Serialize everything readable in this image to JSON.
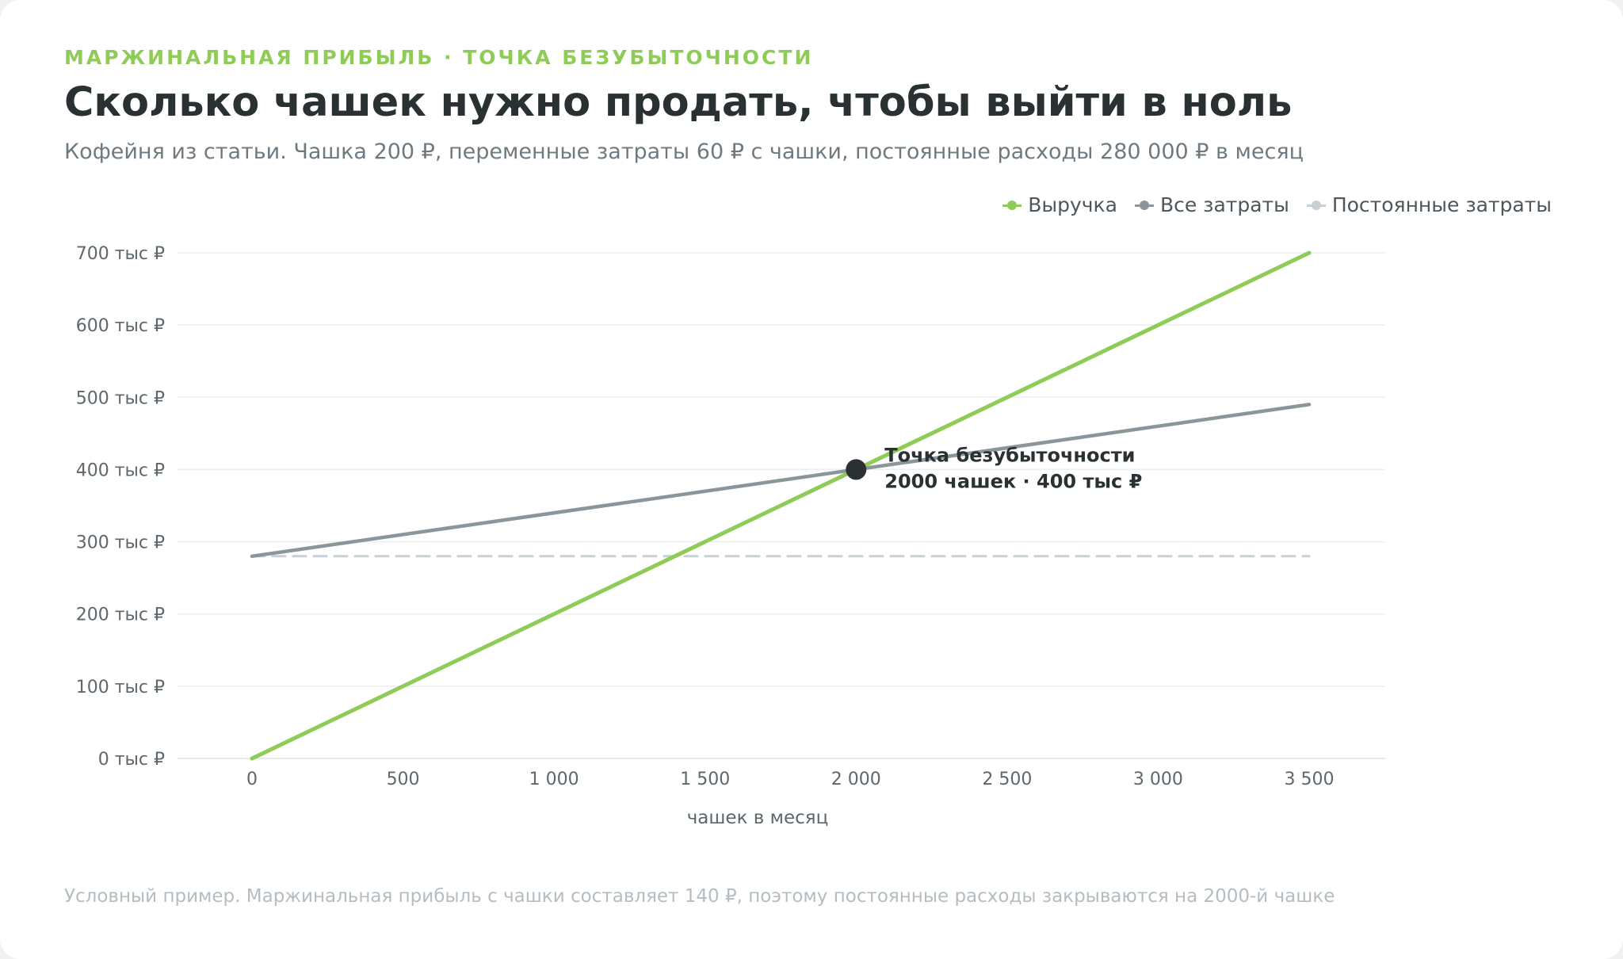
{
  "header": {
    "eyebrow": "МАРЖИНАЛЬНАЯ ПРИБЫЛЬ · ТОЧКА БЕЗУБЫТОЧНОСТИ",
    "title": "Сколько чашек нужно продать, чтобы выйти в ноль",
    "subtitle": "Кофейня из статьи. Чашка 200 ₽, переменные затраты 60 ₽ с чашки, постоянные расходы 280 000 ₽ в месяц"
  },
  "footnote": "Условный пример. Маржинальная прибыль с чашки составляет 140 ₽, поэтому постоянные расходы закрываются на 2000-й чашке",
  "colors": {
    "revenue": "#8fcb57",
    "total_costs": "#8b969b",
    "fixed_costs": "#c8d0d4",
    "point": "#2a3133",
    "grid": "#eceeef"
  },
  "chart_data": {
    "type": "line",
    "xlabel": "чашек в месяц",
    "ylabel": "",
    "xlim": [
      0,
      3500
    ],
    "ylim": [
      0,
      700000
    ],
    "x_ticks": [
      0,
      500,
      1000,
      1500,
      2000,
      2500,
      3000,
      3500
    ],
    "x_tick_labels": [
      "0",
      "500",
      "1 000",
      "1 500",
      "2 000",
      "2 500",
      "3 000",
      "3 500"
    ],
    "y_ticks": [
      0,
      100000,
      200000,
      300000,
      400000,
      500000,
      600000,
      700000
    ],
    "y_tick_labels": [
      "0 тыс ₽",
      "100 тыс ₽",
      "200 тыс ₽",
      "300 тыс ₽",
      "400 тыс ₽",
      "500 тыс ₽",
      "600 тыс ₽",
      "700 тыс ₽"
    ],
    "grid": true,
    "legend_position": "top-right",
    "series": [
      {
        "name": "Выручка",
        "style": "solid",
        "x": [
          0,
          3500
        ],
        "y": [
          0,
          700000
        ]
      },
      {
        "name": "Все затраты",
        "style": "solid",
        "x": [
          0,
          3500
        ],
        "y": [
          280000,
          490000
        ]
      },
      {
        "name": "Постоянные затраты",
        "style": "dashed",
        "x": [
          0,
          3500
        ],
        "y": [
          280000,
          280000
        ]
      }
    ],
    "annotations": [
      {
        "x": 2000,
        "y": 400000,
        "lines": [
          "Точка безубыточности",
          "2000 чашек · 400 тыс ₽"
        ]
      }
    ]
  }
}
